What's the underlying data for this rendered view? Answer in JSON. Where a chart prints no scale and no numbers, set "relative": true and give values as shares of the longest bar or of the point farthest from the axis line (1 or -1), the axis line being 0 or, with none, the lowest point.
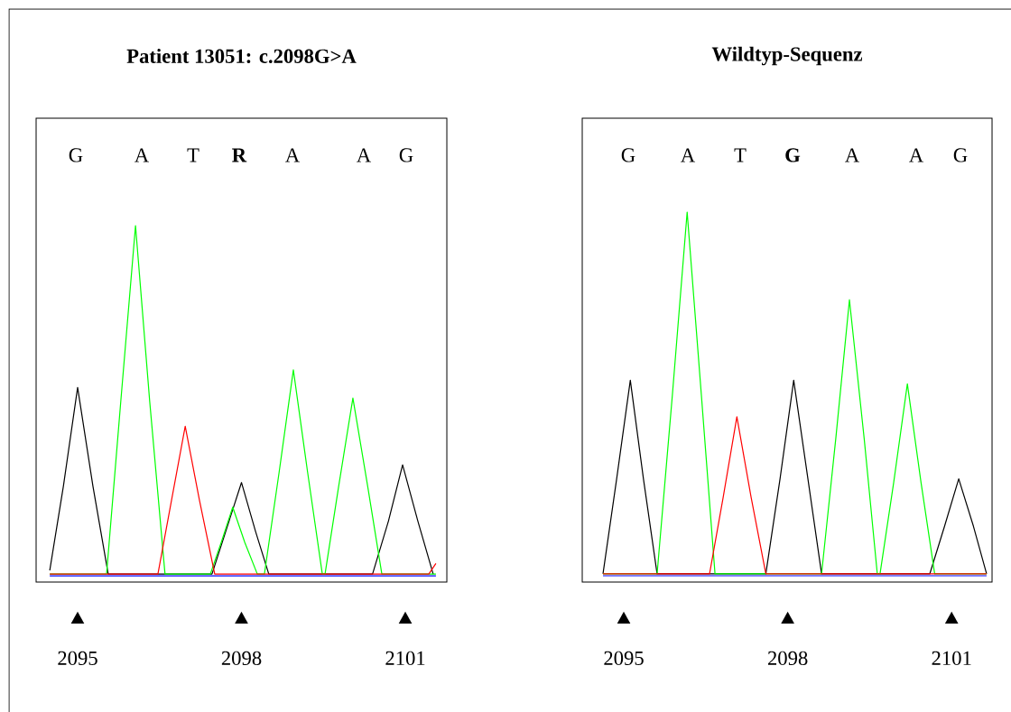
{
  "chart_data": [
    {
      "type": "line",
      "title": "Patient 13051: c.2098G>A",
      "relative": true,
      "xlim": [
        2094.24,
        2101.76
      ],
      "xticks": [
        2095,
        2098,
        2101
      ],
      "annotations": [
        "G",
        "A",
        "T",
        "**R**",
        "A",
        "A",
        "G"
      ],
      "series": [
        {
          "color": "#000000",
          "x": [
            2094.49,
            2094.74,
            2095,
            2095.28,
            2095.56,
            2097.46,
            2097.73,
            2098.0,
            2098.26,
            2098.5,
            2100.4,
            2100.69,
            2100.95,
            2101.23,
            2101.51
          ],
          "values": [
            0.02,
            0.26,
            0.54,
            0.26,
            0.01,
            0.01,
            0.14,
            0.27,
            0.13,
            0.01,
            0.01,
            0.16,
            0.32,
            0.16,
            0.01
          ]
        },
        {
          "color": "#00ff00",
          "x": [
            2094.49,
            2095.53,
            2095.79,
            2096.06,
            2096.32,
            2096.6,
            2097.43,
            2097.63,
            2097.84,
            2098.06,
            2098.29,
            2098.42,
            2098.69,
            2098.95,
            2099.21,
            2099.48,
            2099.53,
            2099.78,
            2100.04,
            2100.31,
            2100.57,
            2101.56
          ],
          "values": [
            0.01,
            0.01,
            0.5,
            1.0,
            0.5,
            0.01,
            0.01,
            0.1,
            0.2,
            0.1,
            0.01,
            0.01,
            0.3,
            0.59,
            0.3,
            0.01,
            0.01,
            0.26,
            0.51,
            0.26,
            0.01,
            0.01
          ]
        },
        {
          "color": "#ff0000",
          "x": [
            2094.49,
            2096.47,
            2096.72,
            2096.97,
            2097.23,
            2097.51,
            2101.43,
            2101.56
          ],
          "values": [
            0.01,
            0.01,
            0.22,
            0.43,
            0.22,
            0.01,
            0.01,
            0.04
          ]
        },
        {
          "color": "#0000ff",
          "x": [
            2094.49,
            2101.56
          ],
          "values": [
            0.005,
            0.005
          ]
        }
      ]
    },
    {
      "type": "line",
      "title": "Wildtyp-Sequenz",
      "relative": true,
      "xlim": [
        2094.24,
        2101.74
      ],
      "xticks": [
        2095,
        2098,
        2101
      ],
      "annotations": [
        "G",
        "A",
        "T",
        "**G**",
        "A",
        "A",
        "G"
      ],
      "series": [
        {
          "color": "#000000",
          "x": [
            2094.62,
            2094.87,
            2095.12,
            2095.36,
            2095.61,
            2097.6,
            2097.86,
            2098.11,
            2098.37,
            2098.62,
            2100.6,
            2100.87,
            2101.13,
            2101.4,
            2101.64
          ],
          "values": [
            0.01,
            0.27,
            0.54,
            0.27,
            0.01,
            0.01,
            0.27,
            0.54,
            0.27,
            0.01,
            0.01,
            0.14,
            0.27,
            0.14,
            0.01
          ]
        },
        {
          "color": "#00ff00",
          "x": [
            2094.62,
            2095.61,
            2095.89,
            2096.16,
            2096.42,
            2096.67,
            2098.62,
            2098.88,
            2099.13,
            2099.4,
            2099.64,
            2099.69,
            2099.94,
            2100.19,
            2100.44,
            2100.69,
            2101.64
          ],
          "values": [
            0.01,
            0.01,
            0.5,
            1.0,
            0.5,
            0.01,
            0.01,
            0.38,
            0.76,
            0.38,
            0.01,
            0.01,
            0.26,
            0.53,
            0.26,
            0.01,
            0.01
          ]
        },
        {
          "color": "#ff0000",
          "x": [
            2094.62,
            2096.57,
            2096.82,
            2097.07,
            2097.33,
            2097.6,
            2101.64
          ],
          "values": [
            0.01,
            0.01,
            0.22,
            0.44,
            0.22,
            0.01,
            0.01
          ]
        },
        {
          "color": "#0000ff",
          "x": [
            2094.62,
            2101.64
          ],
          "values": [
            0.005,
            0.005
          ]
        }
      ]
    }
  ]
}
